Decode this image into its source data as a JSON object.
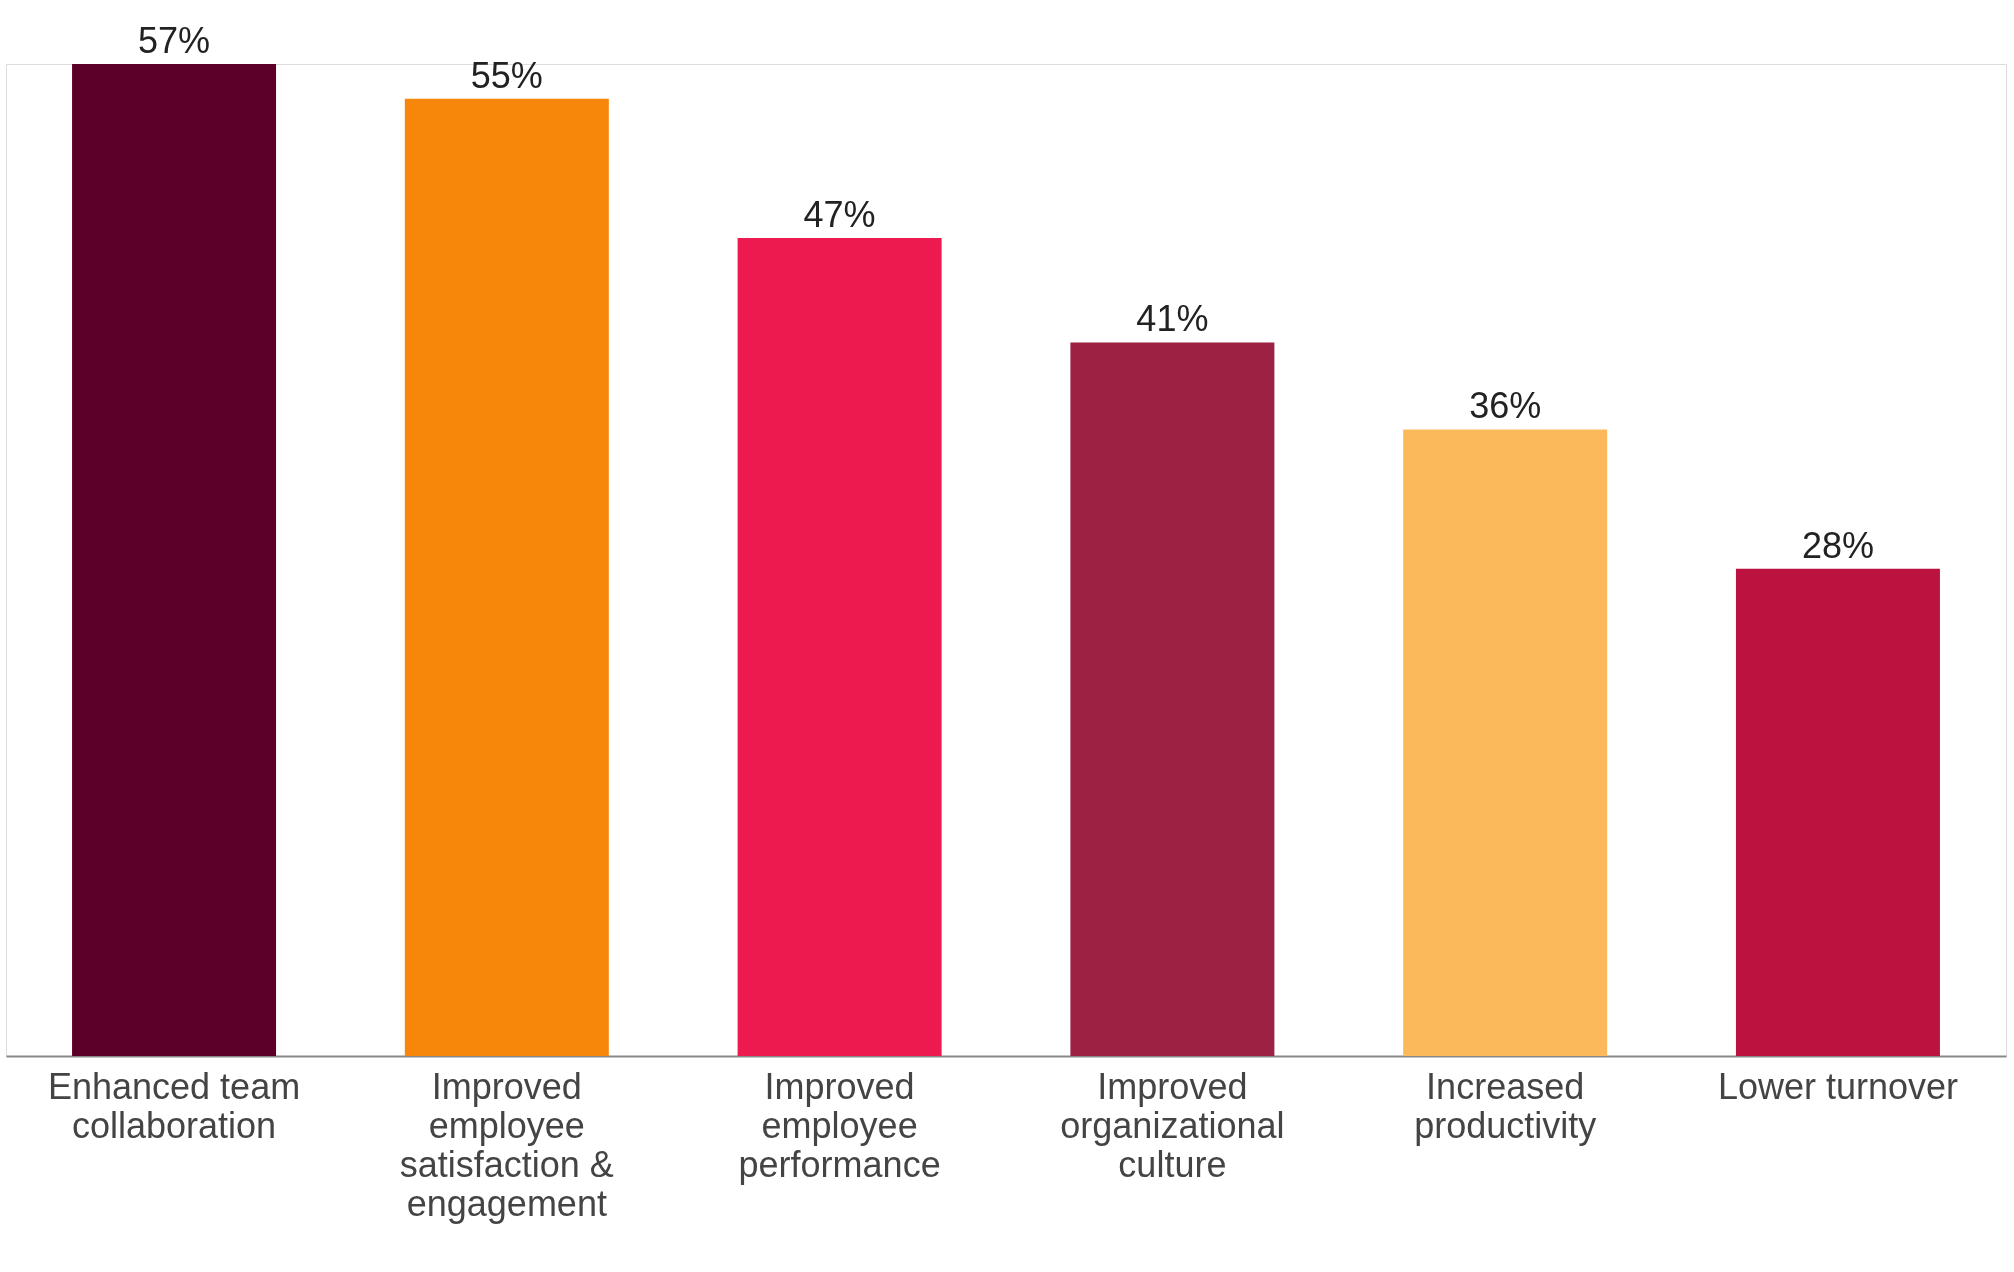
{
  "chart_data": {
    "type": "bar",
    "categories": [
      "Enhanced team collaboration",
      "Improved employee satisfaction & engagement",
      "Improved employee performance",
      "Improved organizational culture",
      "Increased productivity",
      "Lower turnover"
    ],
    "values": [
      57,
      55,
      47,
      41,
      36,
      28
    ],
    "colors": [
      "#5c0029",
      "#f7870a",
      "#ec1a4f",
      "#9c2244",
      "#fbb95c",
      "#bc1240"
    ],
    "data_labels": true,
    "value_labels": [
      "57%",
      "55%",
      "47%",
      "41%",
      "36%",
      "28%"
    ]
  }
}
